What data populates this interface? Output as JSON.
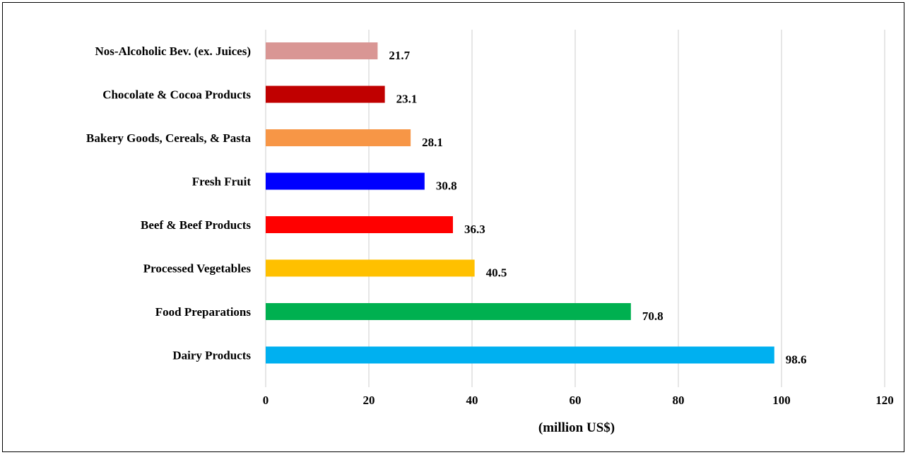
{
  "chart_data": {
    "type": "bar",
    "orientation": "horizontal",
    "categories": [
      "Nos-Alcoholic Bev. (ex. Juices)",
      "Chocolate & Cocoa Products",
      "Bakery Goods, Cereals, & Pasta",
      "Fresh Fruit",
      "Beef & Beef Products",
      "Processed Vegetables",
      "Food Preparations",
      "Dairy Products"
    ],
    "values": [
      21.7,
      23.1,
      28.1,
      30.8,
      36.3,
      40.5,
      70.8,
      98.6
    ],
    "value_labels": [
      "21.7",
      "23.1",
      "28.1",
      "30.8",
      "36.3",
      "40.5",
      "70.8",
      "98.6"
    ],
    "colors": [
      "#d99694",
      "#c00000",
      "#f79646",
      "#0000ff",
      "#ff0000",
      "#ffc000",
      "#00b050",
      "#00b0f0"
    ],
    "xlabel": "(million US$)",
    "xlim": [
      0,
      120
    ],
    "xticks": [
      0,
      20,
      40,
      60,
      80,
      100,
      120
    ],
    "xtick_labels": [
      "0",
      "20",
      "40",
      "60",
      "80",
      "100",
      "120"
    ],
    "grid": "vertical",
    "legend": "none"
  }
}
